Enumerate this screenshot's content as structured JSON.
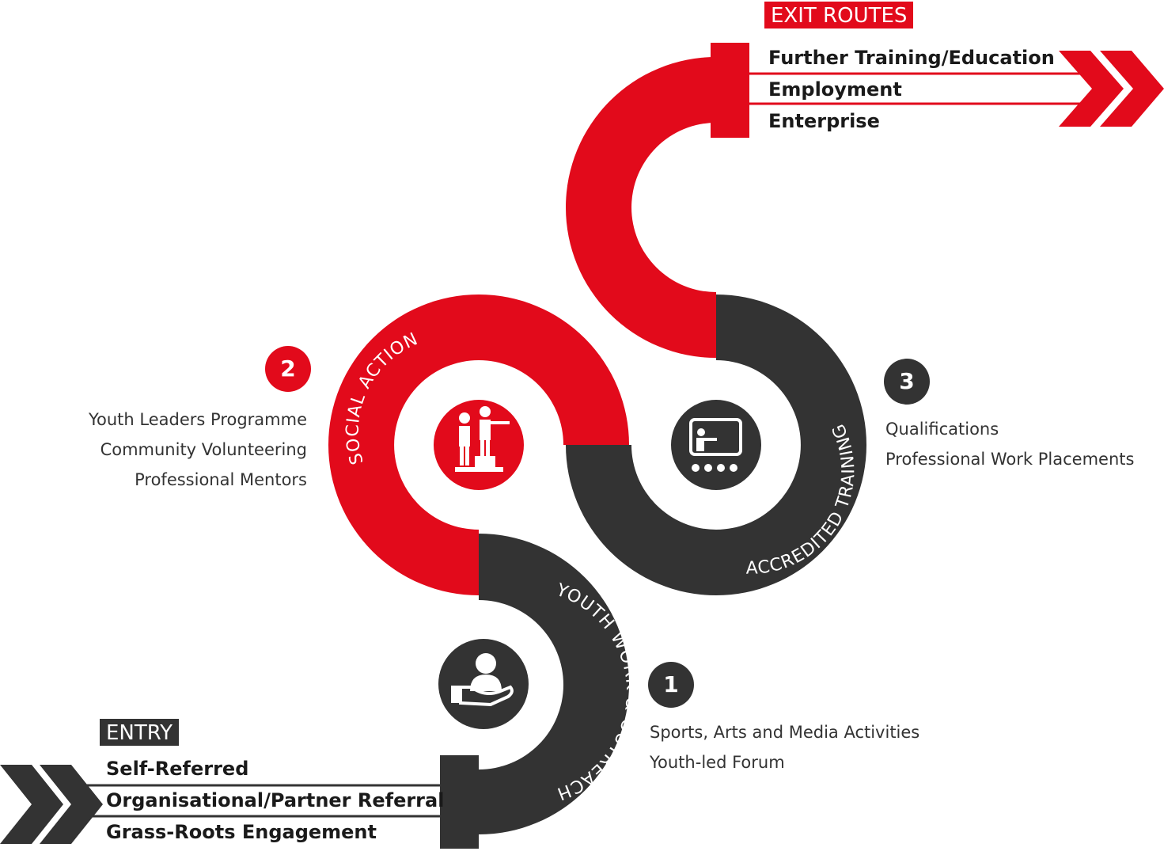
{
  "colors": {
    "red": "#e20a1b",
    "dark": "#333333",
    "white": "#ffffff"
  },
  "entry": {
    "label": "ENTRY",
    "items": [
      "Self-Referred",
      "Organisational/Partner Referral",
      "Grass-Roots Engagement"
    ]
  },
  "exit": {
    "label": "EXIT ROUTES",
    "items": [
      "Further Training/Education",
      "Employment",
      "Enterprise"
    ]
  },
  "stages": [
    {
      "number": "1",
      "arc_label": "YOUTH WORK & OUTREACH",
      "icon": "hand-person-icon",
      "items": [
        "Sports, Arts and Media Activities",
        "Youth-led Forum"
      ]
    },
    {
      "number": "2",
      "arc_label": "SOCIAL ACTION",
      "icon": "two-people-step-icon",
      "items": [
        "Youth Leaders Programme",
        "Community Volunteering",
        "Professional Mentors"
      ]
    },
    {
      "number": "3",
      "arc_label": "ACCREDITED TRAINING",
      "icon": "teacher-board-icon",
      "items": [
        "Qualifications",
        "Professional Work Placements"
      ]
    }
  ]
}
